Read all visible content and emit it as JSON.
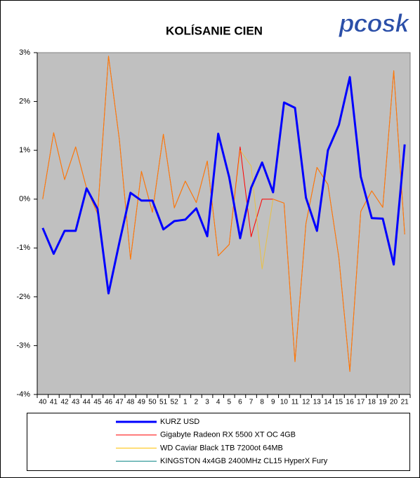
{
  "logo": "pcosk",
  "chart_data": {
    "type": "line",
    "title": "KOLÍSANIE CIEN",
    "categories": [
      "40",
      "41",
      "42",
      "43",
      "44",
      "45",
      "46",
      "47",
      "48",
      "49",
      "50",
      "51",
      "52",
      "1",
      "2",
      "3",
      "4",
      "5",
      "6",
      "7",
      "8",
      "9",
      "10",
      "11",
      "12",
      "13",
      "14",
      "15",
      "16",
      "17",
      "18",
      "19",
      "20",
      "21"
    ],
    "series": [
      {
        "name": "KURZ USD",
        "color": "#0000ff",
        "width": 3,
        "values": [
          -0.59,
          -1.12,
          -0.65,
          -0.65,
          0.22,
          -0.2,
          -1.93,
          -0.88,
          0.13,
          -0.03,
          -0.03,
          -0.62,
          -0.45,
          -0.42,
          -0.19,
          -0.76,
          1.34,
          0.45,
          -0.8,
          0.23,
          0.75,
          0.14,
          1.98,
          1.87,
          0.03,
          -0.65,
          1.0,
          1.52,
          2.5,
          0.46,
          -0.39,
          -0.4,
          -1.34,
          1.12
        ]
      },
      {
        "name": "Gigabyte Radeon RX 5500 XT OC 4GB",
        "color": "#ff0000",
        "width": 1,
        "values": [
          0,
          1.36,
          0.4,
          1.07,
          0.22,
          -0.3,
          2.93,
          1.2,
          -1.23,
          0.57,
          -0.27,
          1.33,
          -0.18,
          0.37,
          -0.07,
          0.78,
          -1.16,
          -0.93,
          1.07,
          -0.77,
          0.0,
          0.0,
          -0.08,
          -3.33,
          -0.5,
          0.65,
          0.3,
          -1.2,
          -3.53,
          -0.25,
          0.17,
          -0.17,
          2.63,
          -0.72
        ]
      },
      {
        "name": "WD Caviar Black 1TB 7200ot 64MB",
        "color": "#ffc000",
        "width": 1,
        "values": [
          0,
          1.36,
          0.4,
          1.07,
          0.22,
          -0.3,
          2.93,
          1.2,
          -1.23,
          0.57,
          -0.27,
          1.33,
          -0.18,
          0.37,
          -0.07,
          0.78,
          -1.16,
          -0.93,
          1.0,
          0.68,
          -1.43,
          0.0,
          -0.08,
          -3.33,
          -0.5,
          0.65,
          0.3,
          -1.2,
          -3.53,
          -0.25,
          0.17,
          -0.17,
          2.63,
          -0.72
        ]
      },
      {
        "name": "KINGSTON 4x4GB 2400MHz CL15 HyperX Fury",
        "color": "#008080",
        "width": 1,
        "values": [
          null,
          null,
          null,
          null,
          null,
          null,
          null,
          null,
          null,
          null,
          null,
          null,
          null,
          null,
          null,
          null,
          null,
          null,
          null,
          null,
          null,
          null,
          null,
          null,
          null,
          null,
          null,
          null,
          null,
          null,
          null,
          null,
          null,
          null
        ]
      }
    ],
    "ylim": [
      -4,
      3
    ],
    "yticks": [
      {
        "value": -4,
        "label": "-4%"
      },
      {
        "value": -3,
        "label": "-3%"
      },
      {
        "value": -2,
        "label": "-2%"
      },
      {
        "value": -1,
        "label": "-1%"
      },
      {
        "value": 0,
        "label": "0%"
      },
      {
        "value": 1,
        "label": "1%"
      },
      {
        "value": 2,
        "label": "2%"
      },
      {
        "value": 3,
        "label": "3%"
      }
    ],
    "grid": false
  }
}
